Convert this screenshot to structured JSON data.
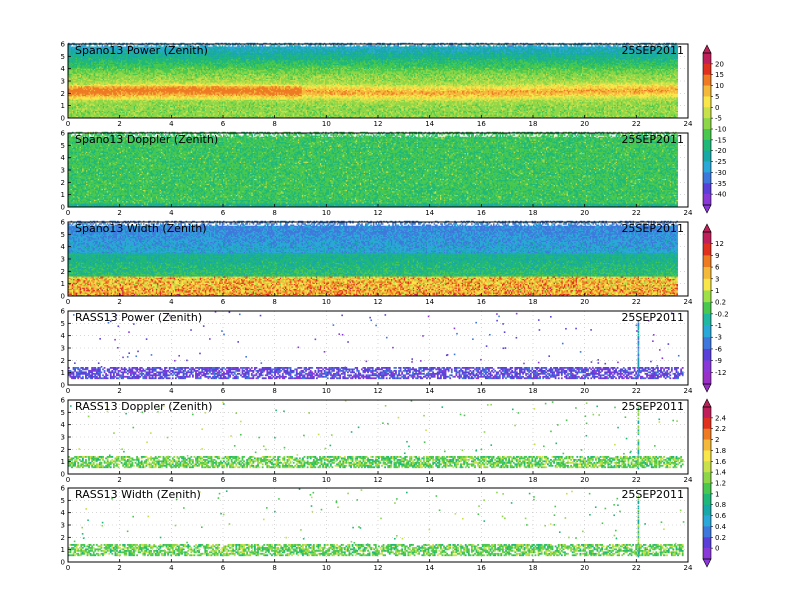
{
  "chart_data": [
    {
      "type": "heatmap",
      "title": "Spano13 Power (Zenith)",
      "date": "25SEP2011",
      "xlim": [
        0,
        24
      ],
      "ylim": [
        0,
        6
      ],
      "xticks": [
        0,
        2,
        4,
        6,
        8,
        10,
        12,
        14,
        16,
        18,
        20,
        22,
        24
      ],
      "yticks": [
        0,
        1,
        2,
        3,
        4,
        5,
        6
      ],
      "colorbar_group": 0,
      "pattern": "power"
    },
    {
      "type": "heatmap",
      "title": "Spano13 Doppler (Zenith)",
      "date": "25SEP2011",
      "xlim": [
        0,
        24
      ],
      "ylim": [
        0,
        6
      ],
      "xticks": [
        0,
        2,
        4,
        6,
        8,
        10,
        12,
        14,
        16,
        18,
        20,
        22,
        24
      ],
      "yticks": [
        0,
        1,
        2,
        3,
        4,
        5,
        6
      ],
      "colorbar_group": 0,
      "pattern": "doppler"
    },
    {
      "type": "heatmap",
      "title": "Spano13 Width (Zenith)",
      "date": "25SEP2011",
      "xlim": [
        0,
        24
      ],
      "ylim": [
        0,
        6
      ],
      "xticks": [
        0,
        2,
        4,
        6,
        8,
        10,
        12,
        14,
        16,
        18,
        20,
        22,
        24
      ],
      "yticks": [
        0,
        1,
        2,
        3,
        4,
        5,
        6
      ],
      "colorbar_group": 1,
      "pattern": "width"
    },
    {
      "type": "heatmap",
      "title": "RASS13 Power (Zenith)",
      "date": "25SEP2011",
      "xlim": [
        0,
        24
      ],
      "ylim": [
        0,
        6
      ],
      "xticks": [
        0,
        2,
        4,
        6,
        8,
        10,
        12,
        14,
        16,
        18,
        20,
        22,
        24
      ],
      "yticks": [
        0,
        1,
        2,
        3,
        4,
        5,
        6
      ],
      "colorbar_group": 1,
      "pattern": "rass_power"
    },
    {
      "type": "heatmap",
      "title": "RASS13 Doppler (Zenith)",
      "date": "25SEP2011",
      "xlim": [
        0,
        24
      ],
      "ylim": [
        0,
        6
      ],
      "xticks": [
        0,
        2,
        4,
        6,
        8,
        10,
        12,
        14,
        16,
        18,
        20,
        22,
        24
      ],
      "yticks": [
        0,
        1,
        2,
        3,
        4,
        5,
        6
      ],
      "colorbar_group": 2,
      "pattern": "rass_doppler"
    },
    {
      "type": "heatmap",
      "title": "RASS13 Width (Zenith)",
      "date": "25SEP2011",
      "xlim": [
        0,
        24
      ],
      "ylim": [
        0,
        6
      ],
      "xticks": [
        0,
        2,
        4,
        6,
        8,
        10,
        12,
        14,
        16,
        18,
        20,
        22,
        24
      ],
      "yticks": [
        0,
        1,
        2,
        3,
        4,
        5,
        6
      ],
      "colorbar_group": 2,
      "pattern": "rass_width"
    }
  ],
  "colorbars": [
    {
      "labels": [
        "20",
        "15",
        "10",
        "5",
        "0",
        "-5",
        "-10",
        "-15",
        "-20",
        "-25",
        "-30",
        "-35",
        "-40"
      ],
      "colors": [
        "#c0205a",
        "#e0301e",
        "#ee7a22",
        "#f4b83a",
        "#f8e64a",
        "#c8e04a",
        "#8cd648",
        "#48c84e",
        "#20b878",
        "#18a8a8",
        "#2aa8d8",
        "#3f78dc",
        "#5a40d8",
        "#8a38d8"
      ]
    },
    {
      "labels": [
        "12",
        "9",
        "6",
        "3",
        "1",
        "0.2",
        "-0.2",
        "-1",
        "-3",
        "-6",
        "-9",
        "-12"
      ],
      "colors": [
        "#c0205a",
        "#e0301e",
        "#ee7a22",
        "#f4b83a",
        "#f8e64a",
        "#9ee048",
        "#48c84e",
        "#20b8a0",
        "#2aa8d8",
        "#3f78dc",
        "#5a40d8",
        "#8a38d8",
        "#9a30c8"
      ]
    },
    {
      "labels": [
        "2.4",
        "2.2",
        "2",
        "1.8",
        "1.6",
        "1.4",
        "1.2",
        "1",
        "0.8",
        "0.6",
        "0.4",
        "0.2",
        "0"
      ],
      "colors": [
        "#c0205a",
        "#e0301e",
        "#ee7a22",
        "#f4b83a",
        "#f8e64a",
        "#c8e04a",
        "#8cd648",
        "#48c84e",
        "#20b878",
        "#18a8a8",
        "#2aa8d8",
        "#3f78dc",
        "#5a40d8",
        "#8a38d8"
      ]
    }
  ]
}
